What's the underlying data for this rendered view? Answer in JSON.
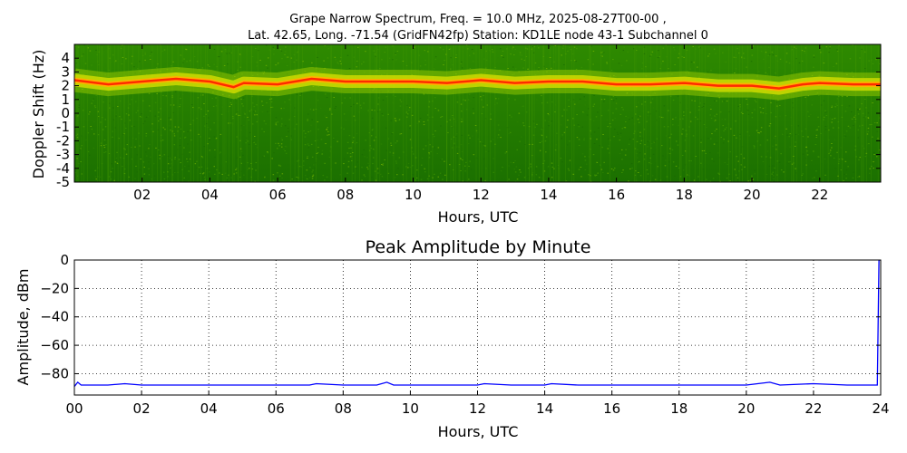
{
  "figure": {
    "title_line1": "Grape Narrow Spectrum, Freq. = 10.0 MHz, 2025-08-27T00-00 ,",
    "title_line2": "Lat.  42.65, Long. -71.54 (GridFN42fp) Station: KD1LE node 43-1 Subchannel 0"
  },
  "colors": {
    "spec_low": "#1f7a00",
    "spec_mid": "#3f9a00",
    "spec_band": "#c8d800",
    "spec_band_core": "#ff2a00",
    "line_series": "#0000ff"
  },
  "chart_data": [
    {
      "type": "heatmap",
      "title": "",
      "xlabel": "Hours, UTC",
      "ylabel": "Doppler Shift (Hz)",
      "xlim": [
        0,
        23.8
      ],
      "ylim": [
        -5,
        5
      ],
      "x_ticks": [
        2,
        4,
        6,
        8,
        10,
        12,
        14,
        16,
        18,
        20,
        22
      ],
      "x_tick_labels": [
        "02",
        "04",
        "06",
        "08",
        "10",
        "12",
        "14",
        "16",
        "18",
        "20",
        "22"
      ],
      "y_ticks": [
        -5,
        -4,
        -3,
        -2,
        -1,
        0,
        1,
        2,
        3,
        4
      ],
      "y_tick_labels": [
        "-5",
        "-4",
        "-3",
        "-2",
        "-1",
        "0",
        "1",
        "2",
        "3",
        "4"
      ],
      "grid": false,
      "peak_band": {
        "x": [
          0,
          1,
          2,
          3,
          4,
          4.7,
          5,
          6,
          7,
          8,
          9,
          10,
          11,
          12,
          13,
          14,
          15,
          16,
          17,
          18,
          19,
          20,
          20.8,
          21.5,
          22,
          23,
          23.8
        ],
        "y": [
          2.4,
          2.1,
          2.3,
          2.5,
          2.3,
          1.9,
          2.2,
          2.1,
          2.5,
          2.3,
          2.3,
          2.3,
          2.2,
          2.4,
          2.2,
          2.3,
          2.3,
          2.1,
          2.1,
          2.2,
          2.0,
          2.0,
          1.8,
          2.1,
          2.2,
          2.1,
          2.1
        ]
      }
    },
    {
      "type": "line",
      "title": "Peak Amplitude by Minute",
      "xlabel": "Hours, UTC",
      "ylabel": "Amplitude, dBm",
      "xlim": [
        0,
        24
      ],
      "ylim": [
        -95,
        0
      ],
      "x_ticks": [
        0,
        2,
        4,
        6,
        8,
        10,
        12,
        14,
        16,
        18,
        20,
        22,
        24
      ],
      "x_tick_labels": [
        "00",
        "02",
        "04",
        "06",
        "08",
        "10",
        "12",
        "14",
        "16",
        "18",
        "20",
        "22",
        "24"
      ],
      "y_ticks": [
        -80,
        -60,
        -40,
        -20,
        0
      ],
      "y_tick_labels": [
        "−80",
        "−60",
        "−40",
        "−20",
        "0"
      ],
      "grid": true,
      "series": [
        {
          "x": [
            0,
            0.1,
            0.2,
            1,
            1.5,
            2,
            3,
            4,
            4.8,
            5,
            6,
            7,
            7.2,
            8,
            9,
            9.3,
            9.5,
            10,
            11,
            12,
            12.2,
            13,
            14,
            14.2,
            15,
            16,
            17,
            18,
            19,
            20,
            20.7,
            21,
            22,
            23,
            23.9,
            23.95,
            24
          ],
          "y": [
            -89,
            -86,
            -88,
            -88,
            -87,
            -88,
            -88,
            -88,
            -88,
            -88,
            -88,
            -88,
            -87,
            -88,
            -88,
            -86,
            -88,
            -88,
            -88,
            -88,
            -87,
            -88,
            -88,
            -87,
            -88,
            -88,
            -88,
            -88,
            -88,
            -88,
            -86,
            -88,
            -87,
            -88,
            -88,
            0,
            0
          ]
        }
      ]
    }
  ]
}
